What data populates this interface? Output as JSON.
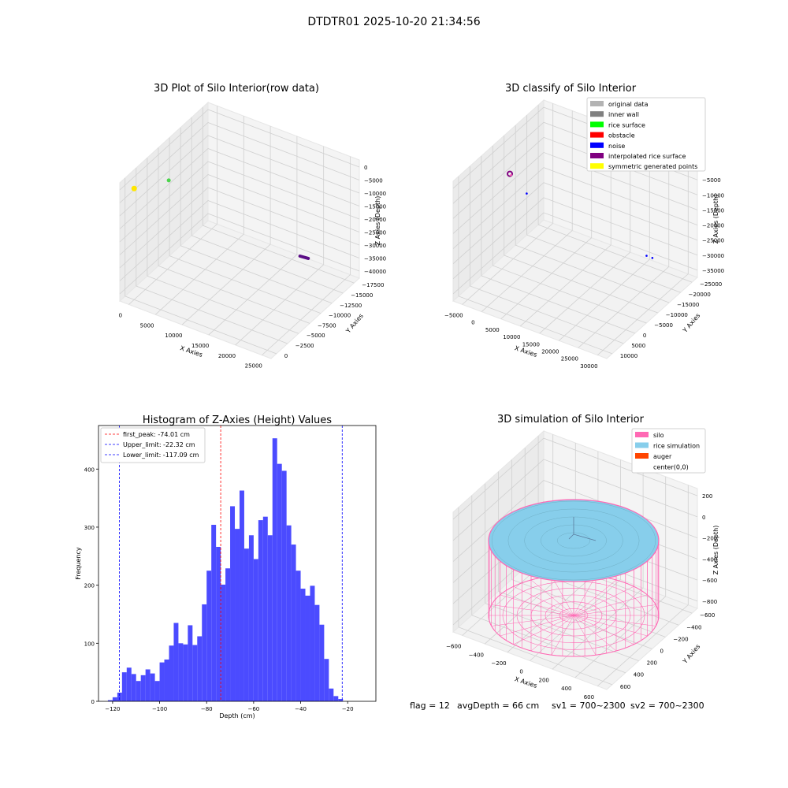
{
  "figure_title": "DTDTR01 2025-10-20 21:34:56",
  "colors": {
    "histogram_bar": "#4b4bff",
    "first_peak": "#ff0000",
    "limit_lines": "#0000ff",
    "silo": "#ff69b4",
    "rice_simulation": "#87ceeb",
    "auger": "#ff4500",
    "pane": "#f2f2f2",
    "grid": "#d0d0d0"
  },
  "chart_data": [
    {
      "id": "raw3d",
      "type": "scatter",
      "title": "3D Plot of Silo Interior(row data)",
      "xlabel": "X Axies",
      "ylabel": "Y Axies",
      "zlabel": "Z Axies (Depth)",
      "x_ticks": [
        "0",
        "5000",
        "10000",
        "15000",
        "20000",
        "25000"
      ],
      "y_ticks": [
        "0",
        "−2500",
        "−5000",
        "−7500",
        "−10000",
        "−12500",
        "−15000",
        "−17500"
      ],
      "z_ticks": [
        "0",
        "−5000",
        "−10000",
        "−15000",
        "−20000",
        "−25000",
        "−30000",
        "−35000",
        "−40000"
      ],
      "xlim": [
        0,
        25000
      ],
      "ylim": [
        -17500,
        0
      ],
      "zlim": [
        -40000,
        0
      ],
      "series": [
        {
          "color": "#ffe600",
          "points": [
            [
              0,
              0,
              0
            ]
          ]
        },
        {
          "color": "#4cd44c",
          "points": [
            [
              1500,
              -6000,
              -5000
            ]
          ]
        },
        {
          "color": "#5b0e86",
          "points": [
            [
              17800,
              -16000,
              -37000
            ],
            [
              18700,
              -16800,
              -38400
            ]
          ]
        }
      ]
    },
    {
      "id": "classify3d",
      "type": "scatter",
      "title": "3D classify of Silo Interior",
      "xlabel": "X Axies",
      "ylabel": "Y Axies",
      "zlabel": "Z Axies (Depth)",
      "x_ticks": [
        "−5000",
        "0",
        "5000",
        "10000",
        "15000",
        "20000",
        "25000",
        "30000"
      ],
      "y_ticks": [
        "10000",
        "5000",
        "0",
        "−5000",
        "−10000",
        "−15000",
        "−20000",
        "−25000"
      ],
      "z_ticks": [
        "0",
        "−5000",
        "−10000",
        "−15000",
        "−20000",
        "−25000",
        "−30000",
        "−35000"
      ],
      "xlim": [
        -5000,
        30000
      ],
      "ylim": [
        -25000,
        10000
      ],
      "zlim": [
        -38000,
        0
      ],
      "legend": [
        {
          "label": "original data",
          "color": "#b3b3b3"
        },
        {
          "label": "inner wall",
          "color": "#808080"
        },
        {
          "label": "rice surface",
          "color": "#00ff00"
        },
        {
          "label": "obstacle",
          "color": "#ff0000"
        },
        {
          "label": "noise",
          "color": "#0000ff"
        },
        {
          "label": "interpolated rice surface",
          "color": "#800080"
        },
        {
          "label": "symmetric generated points",
          "color": "#ffff00"
        }
      ],
      "series": [
        {
          "color": "#800080",
          "points": [
            [
              0,
              0,
              0
            ]
          ]
        },
        {
          "color": "#ff69b4",
          "points": [
            [
              300,
              0,
              -300
            ]
          ]
        },
        {
          "color": "#0000ff",
          "points": [
            [
              2000,
              -4000,
              -9000
            ],
            [
              23000,
              -21000,
              -33000
            ],
            [
              24500,
              -21000,
              -33000
            ]
          ]
        }
      ]
    },
    {
      "id": "histogram",
      "type": "bar",
      "title": "Histogram of Z-Axies (Height) Values",
      "xlabel": "Depth (cm)",
      "ylabel": "Frequency",
      "x_ticks": [
        "−120",
        "−100",
        "−80",
        "−60",
        "−40",
        "−20"
      ],
      "x_tick_values": [
        -120,
        -100,
        -80,
        -60,
        -40,
        -20
      ],
      "y_ticks": [
        "0",
        "100",
        "200",
        "300",
        "400"
      ],
      "y_tick_values": [
        0,
        100,
        200,
        300,
        400
      ],
      "xlim": [
        -126,
        -8
      ],
      "ylim": [
        0,
        475
      ],
      "bin_start": -122,
      "bin_width": 2,
      "values": [
        2,
        7,
        15,
        50,
        58,
        47,
        35,
        45,
        55,
        48,
        35,
        67,
        72,
        96,
        135,
        100,
        98,
        131,
        97,
        112,
        167,
        225,
        304,
        266,
        201,
        229,
        336,
        297,
        363,
        263,
        286,
        245,
        312,
        318,
        286,
        453,
        409,
        397,
        303,
        270,
        225,
        194,
        182,
        199,
        166,
        132,
        73,
        22,
        9,
        4
      ],
      "legend": [
        {
          "label": "first_peak: -74.01 cm",
          "value": -74.01,
          "color": "#ff0000"
        },
        {
          "label": "Upper_limit: -22.32 cm",
          "value": -22.32,
          "color": "#0000ff"
        },
        {
          "label": "Lower_limit: -117.09 cm",
          "value": -117.09,
          "color": "#0000ff"
        }
      ]
    },
    {
      "id": "sim3d",
      "type": "surface",
      "title": "3D simulation of Silo Interior",
      "xlabel": "X Axies",
      "ylabel": "Y Axies",
      "zlabel": "Z Axies (Depth)",
      "x_ticks": [
        "−600",
        "−400",
        "−200",
        "0",
        "200",
        "400",
        "600"
      ],
      "y_ticks": [
        "600",
        "400",
        "200",
        "0",
        "−200",
        "−400",
        "−600"
      ],
      "z_ticks": [
        "200",
        "0",
        "−200",
        "−400",
        "−600",
        "−800"
      ],
      "xlim": [
        -650,
        650
      ],
      "ylim": [
        -650,
        650
      ],
      "zlim": [
        -900,
        300
      ],
      "silo_radius": 650,
      "rice_level": -66,
      "legend": [
        {
          "label": "silo",
          "color": "#ff69b4"
        },
        {
          "label": "rice simulation",
          "color": "#87ceeb"
        },
        {
          "label": "auger",
          "color": "#ff4500"
        },
        {
          "label": "center(0,0)",
          "color": ""
        }
      ]
    }
  ],
  "footer": {
    "flag": "flag = 12",
    "avg_depth": "avgDepth = 66 cm",
    "sv1": "sv1 = 700~2300",
    "sv2": "sv2 = 700~2300"
  }
}
